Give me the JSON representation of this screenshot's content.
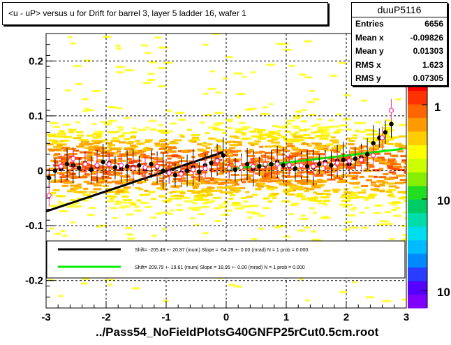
{
  "title": "<u - uP>       versus   u for Drift for barrel 3, layer 5 ladder 16, wafer 1",
  "stats": {
    "name": "duuP5116",
    "rows": [
      {
        "label": "Entries",
        "value": "6656"
      },
      {
        "label": "Mean x",
        "value": "-0.09826"
      },
      {
        "label": "Mean y",
        "value": "0.01303"
      },
      {
        "label": "RMS x",
        "value": "1.623"
      },
      {
        "label": "RMS y",
        "value": "0.07305"
      }
    ]
  },
  "filename": "../Pass54_NoFieldPlotsG40GNFP25rCut0.5cm.root",
  "legend": [
    {
      "text": "Shift=  -205.49 +- 20.87 (mum) Slope =   -54.29 +- 0.00 (mrad)  N = 1 prob = 0.000",
      "color": "#000000"
    },
    {
      "text": "Shift=  209.79 +- 19.61 (mum) Slope =    18.95 +- 0.00 (mrad)  N = 1 prob = 0.000",
      "color": "#00ee00"
    }
  ],
  "palette_labels": [
    "1",
    "10",
    "10"
  ],
  "chart_data": {
    "type": "scatter",
    "x_range": [
      -3,
      3
    ],
    "y_range": [
      -0.25,
      0.25
    ],
    "x_ticks": [
      "-3",
      "-2",
      "-1",
      "0",
      "1",
      "2",
      "3"
    ],
    "y_ticks": [
      "-0.2",
      "-0.1",
      "0",
      "0.1",
      "0.2"
    ],
    "grid": true,
    "fit_lines": [
      {
        "x": [
          -3.0,
          -0.05
        ],
        "y": [
          -0.074,
          0.034
        ],
        "color": "#000000"
      },
      {
        "x": [
          0.0,
          2.95
        ],
        "y": [
          0.002,
          0.04
        ],
        "color": "#00ee00"
      }
    ],
    "profile_black": {
      "x": [
        -2.95,
        -2.85,
        -2.75,
        -2.65,
        -2.55,
        -2.45,
        -2.35,
        -2.25,
        -2.15,
        -2.05,
        -1.95,
        -1.85,
        -1.75,
        -1.65,
        -1.55,
        -1.45,
        -1.35,
        -1.25,
        -1.15,
        -1.05,
        -0.95,
        -0.85,
        -0.75,
        -0.65,
        -0.55,
        -0.45,
        -0.35,
        -0.25,
        -0.15,
        -0.05,
        0.05,
        0.15,
        0.25,
        0.35,
        0.45,
        0.55,
        0.65,
        0.75,
        0.85,
        0.95,
        1.05,
        1.15,
        1.25,
        1.35,
        1.45,
        1.55,
        1.65,
        1.75,
        1.85,
        1.95,
        2.05,
        2.15,
        2.25,
        2.35,
        2.45,
        2.55,
        2.65,
        2.75
      ],
      "y": [
        -0.013,
        0.0,
        0.003,
        0.012,
        0.01,
        0.005,
        0.014,
        0.002,
        0.008,
        0.016,
        0.014,
        0.006,
        0.004,
        0.008,
        0.006,
        0.01,
        0.003,
        0.012,
        0.006,
        0.0,
        -0.005,
        -0.008,
        -0.004,
        0.0,
        0.006,
        -0.002,
        0.01,
        0.014,
        0.02,
        0.028,
        0.004,
        0.002,
        0.006,
        0.012,
        0.004,
        0.008,
        0.01,
        0.012,
        0.016,
        0.01,
        0.008,
        0.004,
        0.01,
        0.008,
        0.006,
        0.012,
        0.016,
        0.01,
        0.018,
        0.02,
        0.012,
        0.022,
        0.024,
        0.03,
        0.05,
        0.06,
        0.07,
        0.085
      ]
    },
    "profile_pink": {
      "x": [
        -2.95,
        -2.75,
        -2.55,
        -2.35,
        -2.15,
        -1.95,
        -1.75,
        -1.55,
        -1.35,
        -1.15,
        -0.95,
        -0.75,
        -0.55,
        -0.35,
        -0.15,
        0.05,
        0.25,
        0.45,
        0.65,
        0.85,
        1.05,
        1.25,
        1.45,
        1.65,
        1.85,
        2.05,
        2.25,
        2.45,
        2.6,
        2.75
      ],
      "y": [
        -0.045,
        0.008,
        0.022,
        0.012,
        0.01,
        0.012,
        0.01,
        0.004,
        0.006,
        0.008,
        -0.004,
        -0.006,
        0.002,
        0.004,
        0.018,
        0.005,
        0.006,
        0.008,
        0.012,
        0.012,
        0.01,
        0.01,
        0.008,
        0.012,
        0.014,
        0.018,
        0.02,
        0.028,
        0.06,
        0.11
      ]
    }
  }
}
